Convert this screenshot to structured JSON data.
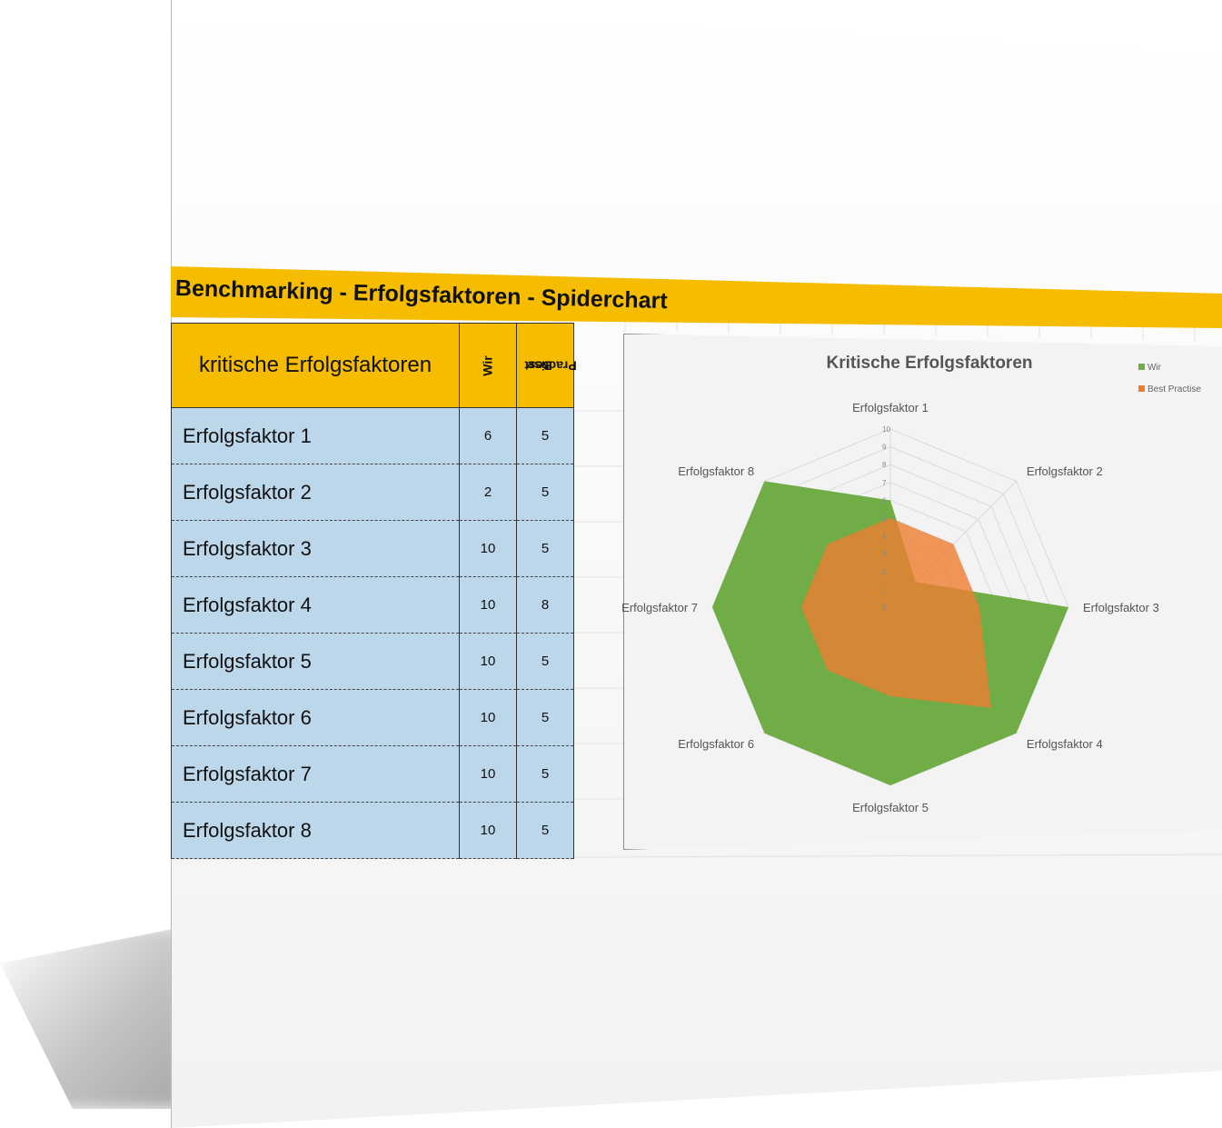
{
  "page_title": "Benchmarking - Erfolgsfaktoren - Spiderchart",
  "table": {
    "header": {
      "label": "kritische Erfolgsfaktoren",
      "col1": "Wir",
      "col2_line1": "Best",
      "col2_line2": "Practise"
    },
    "rows": [
      {
        "name": "Erfolgsfaktor 1",
        "wir": "6",
        "best": "5"
      },
      {
        "name": "Erfolgsfaktor 2",
        "wir": "2",
        "best": "5"
      },
      {
        "name": "Erfolgsfaktor 3",
        "wir": "10",
        "best": "5"
      },
      {
        "name": "Erfolgsfaktor 4",
        "wir": "10",
        "best": "8"
      },
      {
        "name": "Erfolgsfaktor 5",
        "wir": "10",
        "best": "5"
      },
      {
        "name": "Erfolgsfaktor 6",
        "wir": "10",
        "best": "5"
      },
      {
        "name": "Erfolgsfaktor 7",
        "wir": "10",
        "best": "5"
      },
      {
        "name": "Erfolgsfaktor 8",
        "wir": "10",
        "best": "5"
      }
    ]
  },
  "colors": {
    "header": "#f6bd00",
    "row": "#bdd7ea",
    "wir": "#70ad47",
    "best": "#ed7d31"
  },
  "chart_data": {
    "type": "radar",
    "title": "Kritische Erfolgsfaktoren",
    "categories": [
      "Erfolgsfaktor 1",
      "Erfolgsfaktor 2",
      "Erfolgsfaktor 3",
      "Erfolgsfaktor 4",
      "Erfolgsfaktor 5",
      "Erfolgsfaktor 6",
      "Erfolgsfaktor 7",
      "Erfolgsfaktor 8"
    ],
    "series": [
      {
        "name": "Wir",
        "values": [
          6,
          2,
          10,
          10,
          10,
          10,
          10,
          10
        ]
      },
      {
        "name": "Best Practise",
        "values": [
          5,
          5,
          5,
          8,
          5,
          5,
          5,
          5
        ]
      }
    ],
    "rlim": [
      0,
      10
    ],
    "ticks": [
      "0",
      "1",
      "2",
      "3",
      "4",
      "5",
      "6",
      "7",
      "8",
      "9",
      "10"
    ],
    "legend": "top-right"
  }
}
